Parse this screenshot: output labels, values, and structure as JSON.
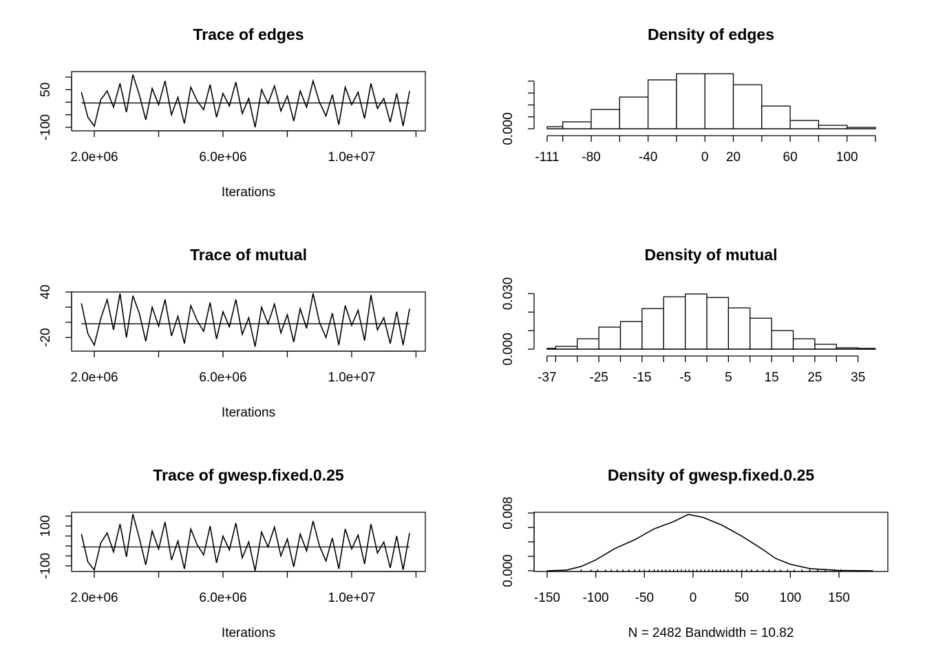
{
  "chart_data": [
    {
      "type": "trace",
      "title": "Trace of edges",
      "xlabel": "Iterations",
      "x": [
        1600000,
        1800000,
        2000000,
        2200000,
        2400000,
        2600000,
        2800000,
        3000000,
        3200000,
        3400000,
        3600000,
        3800000,
        4000000,
        4200000,
        4400000,
        4600000,
        4800000,
        5000000,
        5200000,
        5400000,
        5600000,
        5800000,
        6000000,
        6200000,
        6400000,
        6600000,
        6800000,
        7000000,
        7200000,
        7400000,
        7600000,
        7800000,
        8000000,
        8200000,
        8400000,
        8600000,
        8800000,
        9000000,
        9200000,
        9400000,
        9600000,
        9800000,
        10000000,
        10200000,
        10400000,
        10600000,
        10800000,
        11000000,
        11200000,
        11400000,
        11600000,
        11800000
      ],
      "values": [
        40,
        -60,
        -95,
        10,
        45,
        -20,
        75,
        -40,
        110,
        30,
        -70,
        55,
        -10,
        85,
        -50,
        20,
        -85,
        60,
        5,
        -30,
        70,
        -60,
        35,
        -15,
        80,
        -45,
        15,
        -100,
        50,
        -5,
        65,
        -35,
        25,
        -75,
        45,
        -20,
        85,
        0,
        -55,
        30,
        -90,
        60,
        -10,
        40,
        -65,
        75,
        -25,
        15,
        -80,
        35,
        -95,
        45
      ],
      "mean_line": -3,
      "xlim": [
        1294000,
        12290000
      ],
      "xticks": [
        {
          "value": 2000000,
          "label": "2.0e+06"
        },
        {
          "value": 6000000,
          "label": "6.0e+06"
        },
        {
          "value": 10000000,
          "label": "1.0e+07"
        }
      ],
      "xminorticks": [
        4000000,
        8000000,
        12000000
      ],
      "ylim": [
        -114,
        122
      ],
      "yticks": [
        50,
        -100
      ],
      "yminorticks": [
        100,
        0,
        -50
      ]
    },
    {
      "type": "histogram",
      "title": "Density of edges",
      "bins": [
        -111,
        -100,
        -80,
        -60,
        -40,
        -20,
        0,
        20,
        40,
        60,
        80,
        100,
        120
      ],
      "counts": [
        0.00035,
        0.00116,
        0.00324,
        0.00532,
        0.00821,
        0.00925,
        0.00925,
        0.0074,
        0.00381,
        0.00139,
        0.00058,
        0.00023
      ],
      "xlim": [
        -120.2,
        128.7
      ],
      "xticks": [
        -111,
        -80,
        -40,
        0,
        20,
        60,
        100
      ],
      "xminorticks": [
        -100,
        -60,
        -20,
        40,
        80,
        120
      ],
      "ylim": [
        -0.00035,
        0.0096
      ],
      "yticks": [
        {
          "value": 0,
          "label": "0.000"
        }
      ],
      "yminorticks": [
        0.002,
        0.004,
        0.006,
        0.008
      ]
    },
    {
      "type": "trace",
      "title": "Trace of mutual",
      "xlabel": "Iterations",
      "x": [
        1600000,
        1800000,
        2000000,
        2200000,
        2400000,
        2600000,
        2800000,
        3000000,
        3200000,
        3400000,
        3600000,
        3800000,
        4000000,
        4200000,
        4400000,
        4600000,
        4800000,
        5000000,
        5200000,
        5400000,
        5600000,
        5800000,
        6000000,
        6200000,
        6400000,
        6600000,
        6800000,
        7000000,
        7200000,
        7400000,
        7600000,
        7800000,
        8000000,
        8200000,
        8400000,
        8600000,
        8800000,
        9000000,
        9200000,
        9400000,
        9600000,
        9800000,
        10000000,
        10200000,
        10400000,
        10600000,
        10800000,
        11000000,
        11200000,
        11400000,
        11600000,
        11800000
      ],
      "values": [
        25,
        -15,
        -30,
        5,
        30,
        -10,
        38,
        -20,
        35,
        12,
        -25,
        20,
        -5,
        30,
        -18,
        8,
        -28,
        22,
        2,
        -12,
        26,
        -22,
        14,
        -6,
        30,
        -16,
        6,
        -32,
        20,
        -2,
        24,
        -14,
        10,
        -26,
        18,
        -8,
        38,
        0,
        -20,
        12,
        -30,
        22,
        -4,
        16,
        -24,
        36,
        -10,
        6,
        -28,
        14,
        -30,
        18
      ],
      "mean_line": -2,
      "xlim": [
        1294000,
        12290000
      ],
      "xticks": [
        {
          "value": 2000000,
          "label": "2.0e+06"
        },
        {
          "value": 6000000,
          "label": "6.0e+06"
        },
        {
          "value": 10000000,
          "label": "1.0e+07"
        }
      ],
      "xminorticks": [
        4000000,
        8000000,
        12000000
      ],
      "ylim": [
        -38,
        40
      ],
      "yticks": [
        40,
        -20
      ],
      "yminorticks": [
        20,
        0
      ]
    },
    {
      "type": "histogram",
      "title": "Density of mutual",
      "bins": [
        -37,
        -35,
        -30,
        -25,
        -20,
        -15,
        -10,
        -5,
        0,
        5,
        10,
        15,
        20,
        25,
        30,
        35,
        39
      ],
      "counts": [
        0.0004,
        0.0015,
        0.0056,
        0.0119,
        0.0149,
        0.0219,
        0.0283,
        0.0298,
        0.0279,
        0.0223,
        0.0167,
        0.01,
        0.0056,
        0.0026,
        0.0007,
        0.0004
      ],
      "xlim": [
        -40,
        41.9
      ],
      "xticks": [
        -37,
        -25,
        -15,
        -5,
        5,
        15,
        25,
        35
      ],
      "xminorticks": [
        -35,
        -30,
        -20,
        -10,
        0,
        10,
        20,
        30
      ],
      "ylim": [
        -0.0011,
        0.0309
      ],
      "yticks": [
        {
          "value": 0,
          "label": "0.000"
        },
        {
          "value": 0.03,
          "label": "0.030"
        }
      ],
      "yminorticks": [
        0.01,
        0.02
      ]
    },
    {
      "type": "trace",
      "title": "Trace of gwesp.fixed.0.25",
      "xlabel": "Iterations",
      "x": [
        1600000,
        1800000,
        2000000,
        2200000,
        2400000,
        2600000,
        2800000,
        3000000,
        3200000,
        3400000,
        3600000,
        3800000,
        4000000,
        4200000,
        4400000,
        4600000,
        4800000,
        5000000,
        5200000,
        5400000,
        5600000,
        5800000,
        6000000,
        6200000,
        6400000,
        6600000,
        6800000,
        7000000,
        7200000,
        7400000,
        7600000,
        7800000,
        8000000,
        8200000,
        8400000,
        8600000,
        8800000,
        9000000,
        9200000,
        9400000,
        9600000,
        9800000,
        10000000,
        10200000,
        10400000,
        10600000,
        10800000,
        11000000,
        11200000,
        11400000,
        11600000,
        11800000
      ],
      "values": [
        60,
        -80,
        -120,
        15,
        65,
        -30,
        110,
        -55,
        160,
        40,
        -95,
        75,
        -15,
        120,
        -70,
        25,
        -115,
        85,
        5,
        -45,
        100,
        -85,
        50,
        -20,
        115,
        -60,
        20,
        -125,
        70,
        -5,
        95,
        -50,
        35,
        -105,
        60,
        -25,
        125,
        0,
        -75,
        40,
        -115,
        85,
        -15,
        55,
        -90,
        110,
        -35,
        20,
        -110,
        50,
        -120,
        65
      ],
      "mean_line": -5,
      "xlim": [
        1294000,
        12290000
      ],
      "xticks": [
        {
          "value": 2000000,
          "label": "2.0e+06"
        },
        {
          "value": 6000000,
          "label": "6.0e+06"
        },
        {
          "value": 10000000,
          "label": "1.0e+07"
        }
      ],
      "xminorticks": [
        4000000,
        8000000,
        12000000
      ],
      "ylim": [
        -128,
        169
      ],
      "yticks": [
        100,
        -100
      ],
      "yminorticks": [
        150,
        50,
        0,
        -50
      ]
    },
    {
      "type": "density",
      "title": "Density of gwesp.fixed.0.25",
      "xlabel": "N = 2482   Bandwidth = 10.82",
      "x": [
        -150,
        -130,
        -115,
        -100,
        -80,
        -60,
        -40,
        -20,
        -5,
        10,
        30,
        50,
        70,
        85,
        100,
        120,
        150,
        185
      ],
      "values": [
        0,
        0.0001,
        0.0006,
        0.0015,
        0.0031,
        0.0043,
        0.0058,
        0.0068,
        0.0078,
        0.0074,
        0.0063,
        0.0048,
        0.0031,
        0.0017,
        0.0009,
        0.0003,
        5e-05,
        0
      ],
      "rug": [
        -115,
        -105,
        -98,
        -90,
        -84,
        -78,
        -72,
        -66,
        -60,
        -55,
        -50,
        -45,
        -40,
        -36,
        -32,
        -28,
        -24,
        -20,
        -16,
        -12,
        -8,
        -4,
        0,
        4,
        8,
        12,
        16,
        20,
        24,
        28,
        32,
        36,
        40,
        45,
        50,
        55,
        60,
        66,
        72,
        78,
        84,
        90,
        97,
        104,
        112,
        120,
        128,
        136,
        145,
        152
      ],
      "xlim": [
        -163.4,
        200.2
      ],
      "xticks": [
        -150,
        -100,
        -50,
        0,
        50,
        100,
        150
      ],
      "ylim": [
        -0.0001,
        0.0081
      ],
      "yticks": [
        {
          "value": 0,
          "label": "0.000"
        },
        {
          "value": 0.008,
          "label": "0.008"
        }
      ],
      "yminorticks": [
        0.002,
        0.004,
        0.006
      ]
    }
  ]
}
